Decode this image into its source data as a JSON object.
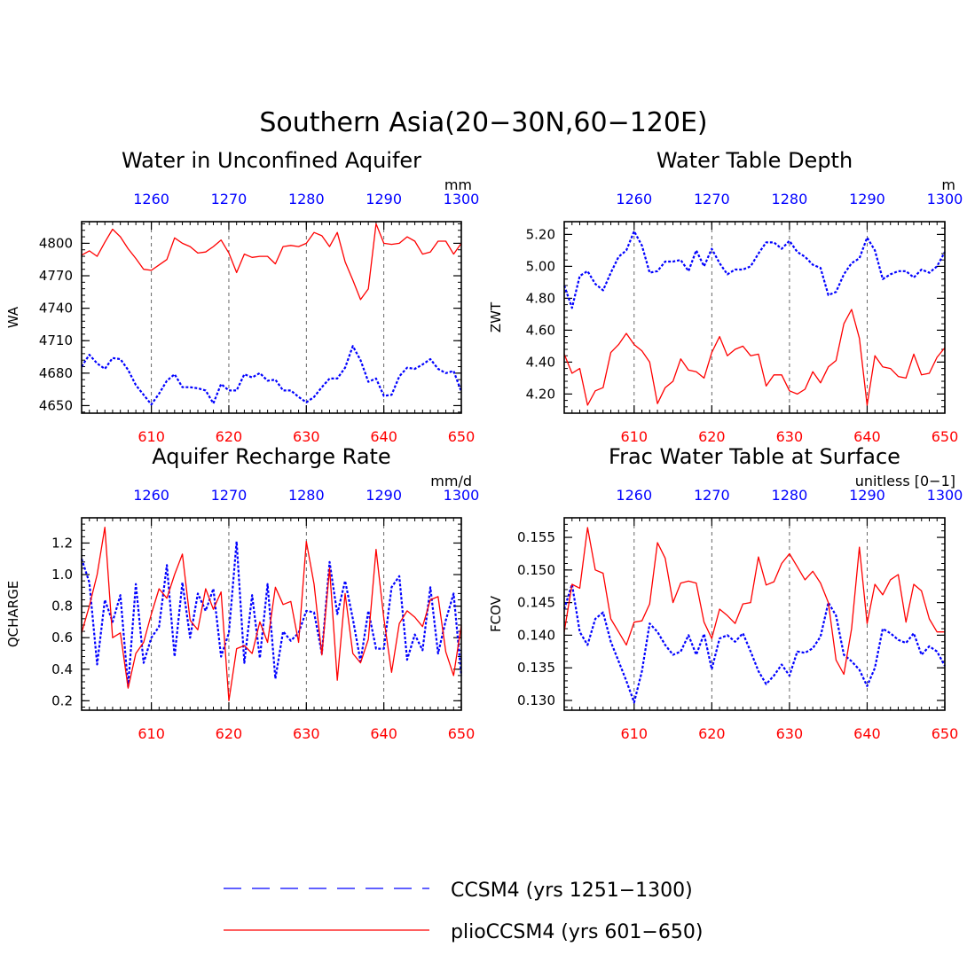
{
  "figure": {
    "title": "Southern Asia(20−30N,60−120E)",
    "colors": {
      "ccsm4": "#0000ff",
      "plio": "#ff0000",
      "axis": "#000000"
    }
  },
  "legend": {
    "placement": "bottom-center",
    "items": [
      {
        "label": "CCSM4 (yrs 1251−1300)",
        "style": "dashed",
        "color": "#0000ff"
      },
      {
        "label": "plioCCSM4 (yrs 601−650)",
        "style": "solid",
        "color": "#ff0000"
      }
    ]
  },
  "chart_data": [
    {
      "type": "line",
      "title": "Water in Unconfined Aquifer",
      "units": "mm",
      "ylabel": "WA",
      "xlim_bottom": [
        601,
        650
      ],
      "xlim_top": [
        1251,
        1300
      ],
      "x_ticks_bottom": [
        "610",
        "620",
        "630",
        "640",
        "650"
      ],
      "x_ticks_top": [
        "1260",
        "1270",
        "1280",
        "1290",
        "1300"
      ],
      "ylim": [
        4643,
        4820
      ],
      "y_ticks": [
        "4650",
        "4680",
        "4710",
        "4740",
        "4770",
        "4800"
      ],
      "y_tick_values": [
        4650,
        4680,
        4710,
        4740,
        4770,
        4800
      ],
      "grid": "dashed vertical at 610, 620, 630, 640",
      "series": [
        {
          "name": "CCSM4 (yrs 1251−1300)",
          "style": "dashed",
          "values": [
            4686,
            4697,
            4689,
            4684,
            4694,
            4693,
            4683,
            4669,
            4660,
            4651,
            4661,
            4673,
            4679,
            4667,
            4667,
            4666,
            4664,
            4652,
            4670,
            4664,
            4664,
            4679,
            4676,
            4680,
            4673,
            4674,
            4664,
            4664,
            4658,
            4653,
            4658,
            4667,
            4675,
            4675,
            4685,
            4705,
            4692,
            4672,
            4675,
            4659,
            4660,
            4677,
            4685,
            4684,
            4688,
            4693,
            4684,
            4680,
            4682,
            4663
          ]
        },
        {
          "name": "plioCCSM4 (yrs 601−650)",
          "style": "solid",
          "values": [
            4789,
            4793,
            4788,
            4801,
            4813,
            4806,
            4795,
            4786,
            4776,
            4775,
            4780,
            4785,
            4805,
            4800,
            4797,
            4791,
            4792,
            4797,
            4803,
            4791,
            4773,
            4790,
            4787,
            4788,
            4788,
            4781,
            4797,
            4798,
            4797,
            4800,
            4810,
            4807,
            4797,
            4810,
            4783,
            4766,
            4748,
            4758,
            4818,
            4800,
            4799,
            4800,
            4806,
            4802,
            4790,
            4792,
            4802,
            4802,
            4790,
            4800
          ]
        }
      ]
    },
    {
      "type": "line",
      "title": "Water Table Depth",
      "units": "m",
      "ylabel": "ZWT",
      "xlim_bottom": [
        601,
        650
      ],
      "xlim_top": [
        1251,
        1300
      ],
      "x_ticks_bottom": [
        "610",
        "620",
        "630",
        "640",
        "650"
      ],
      "x_ticks_top": [
        "1260",
        "1270",
        "1280",
        "1290",
        "1300"
      ],
      "ylim": [
        4.08,
        5.28
      ],
      "y_ticks": [
        "4.20",
        "4.40",
        "4.60",
        "4.80",
        "5.00",
        "5.20"
      ],
      "y_tick_values": [
        4.2,
        4.4,
        4.6,
        4.8,
        5.0,
        5.2
      ],
      "grid": "dashed vertical at 610, 620, 630, 640",
      "series": [
        {
          "name": "CCSM4 (yrs 1251−1300)",
          "style": "dashed",
          "values": [
            4.88,
            4.74,
            4.94,
            4.97,
            4.89,
            4.85,
            4.96,
            5.06,
            5.1,
            5.22,
            5.13,
            4.96,
            4.97,
            5.03,
            5.03,
            5.04,
            4.97,
            5.1,
            5.0,
            5.11,
            5.02,
            4.95,
            4.98,
            4.98,
            5.0,
            5.08,
            5.15,
            5.15,
            5.11,
            5.16,
            5.09,
            5.06,
            5.01,
            4.99,
            4.82,
            4.84,
            4.95,
            5.02,
            5.05,
            5.18,
            5.1,
            4.92,
            4.95,
            4.97,
            4.97,
            4.93,
            4.98,
            4.96,
            5.0,
            5.09
          ]
        },
        {
          "name": "plioCCSM4 (yrs 601−650)",
          "style": "solid",
          "values": [
            4.45,
            4.33,
            4.36,
            4.13,
            4.22,
            4.24,
            4.46,
            4.51,
            4.58,
            4.51,
            4.47,
            4.4,
            4.14,
            4.24,
            4.28,
            4.42,
            4.35,
            4.34,
            4.3,
            4.46,
            4.56,
            4.44,
            4.48,
            4.5,
            4.44,
            4.45,
            4.25,
            4.32,
            4.32,
            4.22,
            4.2,
            4.23,
            4.34,
            4.27,
            4.37,
            4.41,
            4.64,
            4.73,
            4.55,
            4.13,
            4.44,
            4.37,
            4.36,
            4.31,
            4.3,
            4.45,
            4.32,
            4.33,
            4.43,
            4.49
          ]
        }
      ]
    },
    {
      "type": "line",
      "title": "Aquifer Recharge Rate",
      "units": "mm/d",
      "ylabel": "QCHARGE",
      "xlim_bottom": [
        601,
        650
      ],
      "xlim_top": [
        1251,
        1300
      ],
      "x_ticks_bottom": [
        "610",
        "620",
        "630",
        "640",
        "650"
      ],
      "x_ticks_top": [
        "1260",
        "1270",
        "1280",
        "1290",
        "1300"
      ],
      "ylim": [
        0.14,
        1.36
      ],
      "y_ticks": [
        "0.2",
        "0.4",
        "0.6",
        "0.8",
        "1.0",
        "1.2"
      ],
      "y_tick_values": [
        0.2,
        0.4,
        0.6,
        0.8,
        1.0,
        1.2
      ],
      "grid": "dashed vertical at 610, 620, 630, 640",
      "series": [
        {
          "name": "CCSM4 (yrs 1251−1300)",
          "style": "dashed",
          "values": [
            1.1,
            0.95,
            0.43,
            0.84,
            0.7,
            0.87,
            0.29,
            0.94,
            0.44,
            0.6,
            0.67,
            1.06,
            0.48,
            0.95,
            0.6,
            0.88,
            0.77,
            0.91,
            0.48,
            0.63,
            1.21,
            0.44,
            0.87,
            0.47,
            0.94,
            0.34,
            0.64,
            0.58,
            0.63,
            0.77,
            0.76,
            0.5,
            1.08,
            0.75,
            0.96,
            0.72,
            0.45,
            0.77,
            0.53,
            0.53,
            0.92,
            0.99,
            0.46,
            0.62,
            0.52,
            0.92,
            0.5,
            0.71,
            0.88,
            0.36
          ]
        },
        {
          "name": "plioCCSM4 (yrs 601−650)",
          "style": "solid",
          "values": [
            0.63,
            0.8,
            1.0,
            1.3,
            0.6,
            0.63,
            0.28,
            0.5,
            0.57,
            0.75,
            0.91,
            0.85,
            1.0,
            1.13,
            0.71,
            0.65,
            0.91,
            0.78,
            0.89,
            0.2,
            0.53,
            0.55,
            0.5,
            0.7,
            0.57,
            0.92,
            0.81,
            0.83,
            0.57,
            1.21,
            0.94,
            0.49,
            1.04,
            0.33,
            0.88,
            0.5,
            0.44,
            0.59,
            1.16,
            0.72,
            0.38,
            0.69,
            0.77,
            0.73,
            0.67,
            0.84,
            0.86,
            0.51,
            0.36,
            0.68
          ]
        }
      ]
    },
    {
      "type": "line",
      "title": "Frac Water Table at Surface",
      "units": "unitless [0−1]",
      "ylabel": "FCOV",
      "xlim_bottom": [
        601,
        650
      ],
      "xlim_top": [
        1251,
        1300
      ],
      "x_ticks_bottom": [
        "610",
        "620",
        "630",
        "640",
        "650"
      ],
      "x_ticks_top": [
        "1260",
        "1270",
        "1280",
        "1290",
        "1300"
      ],
      "ylim": [
        0.1285,
        0.158
      ],
      "y_ticks": [
        "0.130",
        "0.135",
        "0.140",
        "0.145",
        "0.150",
        "0.155"
      ],
      "y_tick_values": [
        0.13,
        0.135,
        0.14,
        0.145,
        0.15,
        0.155
      ],
      "grid": "dashed vertical at 610, 620, 630, 640",
      "series": [
        {
          "name": "CCSM4 (yrs 1251−1300)",
          "style": "dashed",
          "values": [
            0.144,
            0.1478,
            0.1405,
            0.1385,
            0.1425,
            0.1435,
            0.139,
            0.136,
            0.133,
            0.1297,
            0.1345,
            0.1418,
            0.1405,
            0.1385,
            0.137,
            0.1375,
            0.14,
            0.137,
            0.1402,
            0.1348,
            0.1395,
            0.14,
            0.139,
            0.1403,
            0.1375,
            0.1345,
            0.1325,
            0.1338,
            0.1355,
            0.1338,
            0.1375,
            0.1373,
            0.138,
            0.1398,
            0.145,
            0.143,
            0.137,
            0.136,
            0.1347,
            0.1322,
            0.135,
            0.141,
            0.1403,
            0.1393,
            0.1388,
            0.1403,
            0.137,
            0.1383,
            0.1375,
            0.1353
          ]
        },
        {
          "name": "plioCCSM4 (yrs 601−650)",
          "style": "solid",
          "values": [
            0.1405,
            0.1478,
            0.1472,
            0.1565,
            0.15,
            0.1495,
            0.1425,
            0.1405,
            0.1385,
            0.142,
            0.1422,
            0.1448,
            0.1542,
            0.1518,
            0.145,
            0.148,
            0.1483,
            0.148,
            0.142,
            0.1395,
            0.144,
            0.143,
            0.1418,
            0.1448,
            0.145,
            0.152,
            0.1477,
            0.1482,
            0.151,
            0.1525,
            0.1505,
            0.1485,
            0.1498,
            0.148,
            0.145,
            0.1362,
            0.134,
            0.141,
            0.1535,
            0.1418,
            0.1478,
            0.1462,
            0.1485,
            0.1493,
            0.142,
            0.1478,
            0.1468,
            0.1425,
            0.1405,
            0.1405
          ]
        }
      ]
    }
  ]
}
